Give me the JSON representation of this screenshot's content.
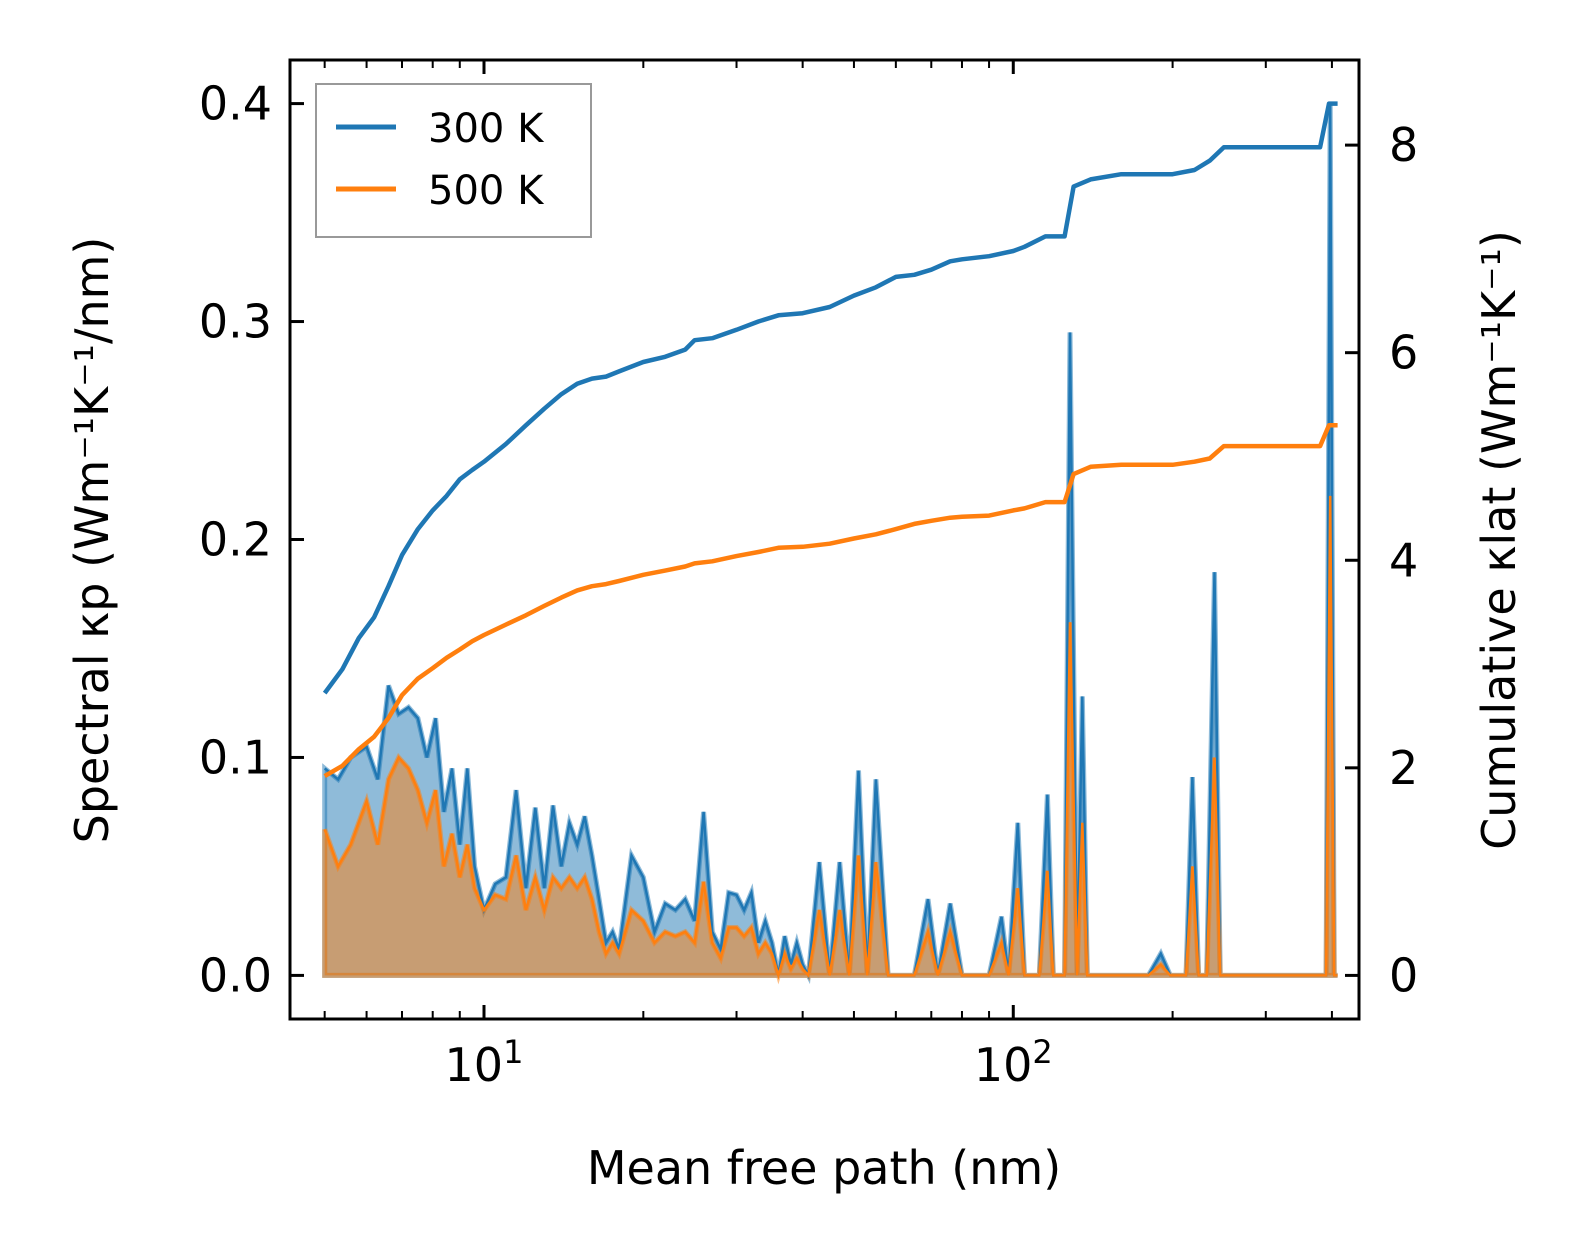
{
  "chart_data": {
    "type": "line",
    "title": "",
    "xlabel": "Mean free path (nm)",
    "ylabel_left": "Spectral κp (Wm⁻¹K⁻¹/nm)",
    "ylabel_right": "Cumulative κlat (Wm⁻¹K⁻¹)",
    "xscale": "log",
    "xlim": [
      4.3,
      450
    ],
    "ylim_left": [
      -0.02,
      0.42
    ],
    "ylim_right": [
      -0.42,
      8.82
    ],
    "x_tick_labels": [
      {
        "exponent": "1"
      },
      {
        "exponent": "2"
      }
    ],
    "x_tick_base": "10",
    "y_left_ticks": [
      "0.0",
      "0.1",
      "0.2",
      "0.3",
      "0.4"
    ],
    "y_right_ticks": [
      "0",
      "2",
      "4",
      "6",
      "8"
    ],
    "legend": {
      "position": "upper-left",
      "entries": [
        "300 K",
        "500 K"
      ]
    },
    "colors": {
      "300 K": "#1f77b4",
      "500 K": "#ff7f0e"
    },
    "series": [
      {
        "name": "300 K",
        "kind": "spectral",
        "axis": "left",
        "points": [
          [
            5,
            0.095
          ],
          [
            5.3,
            0.09
          ],
          [
            5.6,
            0.1
          ],
          [
            6.0,
            0.105
          ],
          [
            6.3,
            0.09
          ],
          [
            6.6,
            0.133
          ],
          [
            6.9,
            0.12
          ],
          [
            7.2,
            0.123
          ],
          [
            7.5,
            0.118
          ],
          [
            7.8,
            0.1
          ],
          [
            8.1,
            0.118
          ],
          [
            8.4,
            0.075
          ],
          [
            8.7,
            0.095
          ],
          [
            9.0,
            0.06
          ],
          [
            9.3,
            0.095
          ],
          [
            9.6,
            0.05
          ],
          [
            10.0,
            0.03
          ],
          [
            10.5,
            0.042
          ],
          [
            11.0,
            0.045
          ],
          [
            11.5,
            0.085
          ],
          [
            12.0,
            0.04
          ],
          [
            12.5,
            0.077
          ],
          [
            13.0,
            0.04
          ],
          [
            13.5,
            0.078
          ],
          [
            14.0,
            0.05
          ],
          [
            14.5,
            0.07
          ],
          [
            15.0,
            0.06
          ],
          [
            15.5,
            0.073
          ],
          [
            16.0,
            0.055
          ],
          [
            16.5,
            0.035
          ],
          [
            17.0,
            0.015
          ],
          [
            17.5,
            0.02
          ],
          [
            18.0,
            0.012
          ],
          [
            19.0,
            0.055
          ],
          [
            20.0,
            0.045
          ],
          [
            21.0,
            0.02
          ],
          [
            22.0,
            0.033
          ],
          [
            23.0,
            0.03
          ],
          [
            24.0,
            0.035
          ],
          [
            25.0,
            0.025
          ],
          [
            26.0,
            0.075
          ],
          [
            27.0,
            0.02
          ],
          [
            28.0,
            0.012
          ],
          [
            29.0,
            0.038
          ],
          [
            30.0,
            0.037
          ],
          [
            31.0,
            0.03
          ],
          [
            32.0,
            0.038
          ],
          [
            33.0,
            0.015
          ],
          [
            34.0,
            0.025
          ],
          [
            35.0,
            0.015
          ],
          [
            36.0,
            0.0
          ],
          [
            37.0,
            0.018
          ],
          [
            38.0,
            0.005
          ],
          [
            39.0,
            0.015
          ],
          [
            40.0,
            0.005
          ],
          [
            41.0,
            0.0
          ],
          [
            43.0,
            0.052
          ],
          [
            45.0,
            0.0
          ],
          [
            47.0,
            0.052
          ],
          [
            49.0,
            0.0
          ],
          [
            51.0,
            0.094
          ],
          [
            53.0,
            0.0
          ],
          [
            55.0,
            0.09
          ],
          [
            58.0,
            0.0
          ],
          [
            62.0,
            0.0
          ],
          [
            65.0,
            0.0
          ],
          [
            69.0,
            0.035
          ],
          [
            72.0,
            0.0
          ],
          [
            76.0,
            0.033
          ],
          [
            80.0,
            0.0
          ],
          [
            90.0,
            0.0
          ],
          [
            95.0,
            0.027
          ],
          [
            98.0,
            0.0
          ],
          [
            102.0,
            0.07
          ],
          [
            105.0,
            0.0
          ],
          [
            112.0,
            0.0
          ],
          [
            116.0,
            0.083
          ],
          [
            119.0,
            0.0
          ],
          [
            125.0,
            0.0
          ],
          [
            128.0,
            0.295
          ],
          [
            132.0,
            0.0
          ],
          [
            135.0,
            0.128
          ],
          [
            138.0,
            0.0
          ],
          [
            180.0,
            0.0
          ],
          [
            190.0,
            0.01
          ],
          [
            198.0,
            0.0
          ],
          [
            212.0,
            0.0
          ],
          [
            218.0,
            0.091
          ],
          [
            224.0,
            0.0
          ],
          [
            232.0,
            0.0
          ],
          [
            240.0,
            0.185
          ],
          [
            246.0,
            0.0
          ],
          [
            380.0,
            0.0
          ],
          [
            390.0,
            0.0
          ],
          [
            397.0,
            0.4
          ],
          [
            404.0,
            0.0
          ],
          [
            410.0,
            0.0
          ]
        ]
      },
      {
        "name": "500 K",
        "kind": "spectral",
        "axis": "left",
        "points": [
          [
            5,
            0.067
          ],
          [
            5.3,
            0.05
          ],
          [
            5.6,
            0.06
          ],
          [
            6.0,
            0.08
          ],
          [
            6.3,
            0.06
          ],
          [
            6.6,
            0.09
          ],
          [
            6.9,
            0.1
          ],
          [
            7.2,
            0.095
          ],
          [
            7.5,
            0.085
          ],
          [
            7.8,
            0.07
          ],
          [
            8.1,
            0.085
          ],
          [
            8.4,
            0.05
          ],
          [
            8.7,
            0.065
          ],
          [
            9.0,
            0.045
          ],
          [
            9.3,
            0.06
          ],
          [
            9.6,
            0.04
          ],
          [
            10.0,
            0.03
          ],
          [
            10.5,
            0.037
          ],
          [
            11.0,
            0.035
          ],
          [
            11.5,
            0.055
          ],
          [
            12.0,
            0.03
          ],
          [
            12.5,
            0.045
          ],
          [
            13.0,
            0.03
          ],
          [
            13.5,
            0.045
          ],
          [
            14.0,
            0.04
          ],
          [
            14.5,
            0.045
          ],
          [
            15.0,
            0.04
          ],
          [
            15.5,
            0.045
          ],
          [
            16.0,
            0.035
          ],
          [
            16.5,
            0.02
          ],
          [
            17.0,
            0.01
          ],
          [
            17.5,
            0.015
          ],
          [
            18.0,
            0.01
          ],
          [
            19.0,
            0.03
          ],
          [
            20.0,
            0.025
          ],
          [
            21.0,
            0.015
          ],
          [
            22.0,
            0.02
          ],
          [
            23.0,
            0.018
          ],
          [
            24.0,
            0.02
          ],
          [
            25.0,
            0.015
          ],
          [
            26.0,
            0.043
          ],
          [
            27.0,
            0.015
          ],
          [
            28.0,
            0.008
          ],
          [
            29.0,
            0.022
          ],
          [
            30.0,
            0.022
          ],
          [
            31.0,
            0.018
          ],
          [
            32.0,
            0.022
          ],
          [
            33.0,
            0.01
          ],
          [
            34.0,
            0.015
          ],
          [
            35.0,
            0.01
          ],
          [
            36.0,
            0.0
          ],
          [
            37.0,
            0.01
          ],
          [
            38.0,
            0.003
          ],
          [
            39.0,
            0.008
          ],
          [
            40.0,
            0.003
          ],
          [
            41.0,
            0.0
          ],
          [
            43.0,
            0.03
          ],
          [
            45.0,
            0.0
          ],
          [
            47.0,
            0.03
          ],
          [
            49.0,
            0.0
          ],
          [
            51.0,
            0.055
          ],
          [
            53.0,
            0.0
          ],
          [
            55.0,
            0.052
          ],
          [
            58.0,
            0.0
          ],
          [
            62.0,
            0.0
          ],
          [
            65.0,
            0.0
          ],
          [
            69.0,
            0.02
          ],
          [
            72.0,
            0.0
          ],
          [
            76.0,
            0.02
          ],
          [
            80.0,
            0.0
          ],
          [
            90.0,
            0.0
          ],
          [
            95.0,
            0.015
          ],
          [
            98.0,
            0.0
          ],
          [
            102.0,
            0.04
          ],
          [
            105.0,
            0.0
          ],
          [
            112.0,
            0.0
          ],
          [
            116.0,
            0.048
          ],
          [
            119.0,
            0.0
          ],
          [
            125.0,
            0.0
          ],
          [
            128.0,
            0.162
          ],
          [
            132.0,
            0.0
          ],
          [
            135.0,
            0.07
          ],
          [
            138.0,
            0.0
          ],
          [
            180.0,
            0.0
          ],
          [
            190.0,
            0.005
          ],
          [
            198.0,
            0.0
          ],
          [
            212.0,
            0.0
          ],
          [
            218.0,
            0.05
          ],
          [
            224.0,
            0.0
          ],
          [
            232.0,
            0.0
          ],
          [
            240.0,
            0.1
          ],
          [
            246.0,
            0.0
          ],
          [
            380.0,
            0.0
          ],
          [
            390.0,
            0.0
          ],
          [
            397.0,
            0.22
          ],
          [
            404.0,
            0.0
          ],
          [
            410.0,
            0.0
          ]
        ]
      },
      {
        "name": "300 K",
        "kind": "cumulative",
        "axis": "right",
        "points": [
          [
            5,
            2.72
          ],
          [
            5.4,
            2.95
          ],
          [
            5.8,
            3.25
          ],
          [
            6.2,
            3.45
          ],
          [
            6.6,
            3.75
          ],
          [
            7.0,
            4.05
          ],
          [
            7.5,
            4.3
          ],
          [
            8.0,
            4.48
          ],
          [
            8.5,
            4.62
          ],
          [
            9.0,
            4.78
          ],
          [
            9.5,
            4.87
          ],
          [
            10.0,
            4.95
          ],
          [
            11.0,
            5.12
          ],
          [
            12.0,
            5.3
          ],
          [
            13.0,
            5.46
          ],
          [
            14.0,
            5.6
          ],
          [
            15.0,
            5.7
          ],
          [
            16.0,
            5.75
          ],
          [
            17.0,
            5.77
          ],
          [
            18.0,
            5.82
          ],
          [
            20.0,
            5.91
          ],
          [
            22.0,
            5.96
          ],
          [
            24.0,
            6.03
          ],
          [
            25.0,
            6.12
          ],
          [
            27.0,
            6.14
          ],
          [
            30.0,
            6.22
          ],
          [
            33.0,
            6.3
          ],
          [
            36.0,
            6.36
          ],
          [
            40.0,
            6.38
          ],
          [
            45.0,
            6.44
          ],
          [
            50.0,
            6.55
          ],
          [
            55.0,
            6.63
          ],
          [
            60.0,
            6.73
          ],
          [
            65.0,
            6.75
          ],
          [
            70.0,
            6.8
          ],
          [
            76.0,
            6.88
          ],
          [
            80.0,
            6.9
          ],
          [
            90.0,
            6.93
          ],
          [
            100.0,
            6.98
          ],
          [
            105.0,
            7.02
          ],
          [
            115.0,
            7.12
          ],
          [
            125.0,
            7.12
          ],
          [
            130.0,
            7.6
          ],
          [
            140.0,
            7.67
          ],
          [
            160.0,
            7.72
          ],
          [
            200.0,
            7.72
          ],
          [
            220.0,
            7.76
          ],
          [
            235.0,
            7.85
          ],
          [
            250.0,
            7.98
          ],
          [
            380.0,
            7.98
          ],
          [
            395.0,
            8.4
          ],
          [
            410.0,
            8.4
          ]
        ]
      },
      {
        "name": "500 K",
        "kind": "cumulative",
        "axis": "right",
        "points": [
          [
            5,
            1.92
          ],
          [
            5.4,
            2.02
          ],
          [
            5.8,
            2.18
          ],
          [
            6.2,
            2.3
          ],
          [
            6.6,
            2.48
          ],
          [
            7.0,
            2.7
          ],
          [
            7.5,
            2.86
          ],
          [
            8.0,
            2.96
          ],
          [
            8.5,
            3.06
          ],
          [
            9.0,
            3.14
          ],
          [
            9.5,
            3.22
          ],
          [
            10.0,
            3.28
          ],
          [
            11.0,
            3.38
          ],
          [
            12.0,
            3.47
          ],
          [
            13.0,
            3.56
          ],
          [
            14.0,
            3.64
          ],
          [
            15.0,
            3.71
          ],
          [
            16.0,
            3.75
          ],
          [
            17.0,
            3.77
          ],
          [
            18.0,
            3.8
          ],
          [
            20.0,
            3.86
          ],
          [
            22.0,
            3.9
          ],
          [
            24.0,
            3.94
          ],
          [
            25.0,
            3.97
          ],
          [
            27.0,
            3.99
          ],
          [
            30.0,
            4.04
          ],
          [
            33.0,
            4.08
          ],
          [
            36.0,
            4.12
          ],
          [
            40.0,
            4.13
          ],
          [
            45.0,
            4.16
          ],
          [
            50.0,
            4.21
          ],
          [
            55.0,
            4.25
          ],
          [
            60.0,
            4.3
          ],
          [
            65.0,
            4.35
          ],
          [
            70.0,
            4.38
          ],
          [
            76.0,
            4.41
          ],
          [
            80.0,
            4.42
          ],
          [
            90.0,
            4.43
          ],
          [
            100.0,
            4.48
          ],
          [
            105.0,
            4.5
          ],
          [
            115.0,
            4.56
          ],
          [
            125.0,
            4.56
          ],
          [
            130.0,
            4.83
          ],
          [
            140.0,
            4.9
          ],
          [
            160.0,
            4.92
          ],
          [
            200.0,
            4.92
          ],
          [
            220.0,
            4.95
          ],
          [
            235.0,
            4.98
          ],
          [
            250.0,
            5.1
          ],
          [
            380.0,
            5.1
          ],
          [
            395.0,
            5.3
          ],
          [
            410.0,
            5.3
          ]
        ]
      }
    ]
  }
}
